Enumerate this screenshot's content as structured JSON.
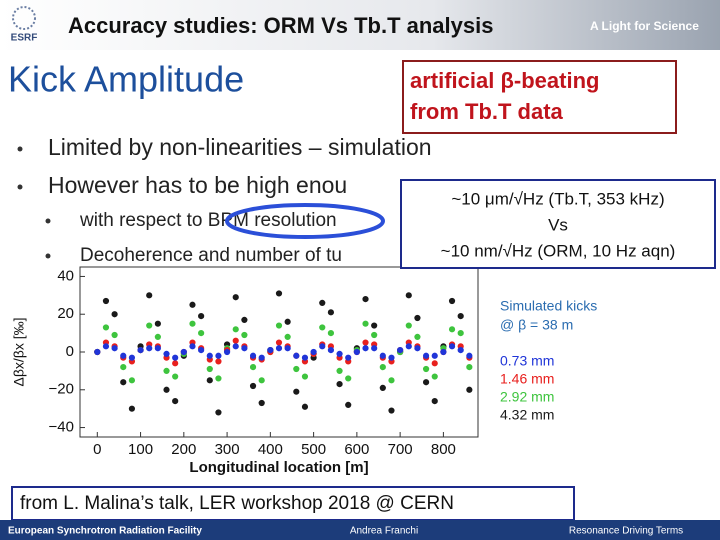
{
  "header": {
    "logo": "ESRF",
    "title": "Accuracy studies: ORM Vs Tb.T analysis",
    "tagline": "A Light for Science"
  },
  "slide_title": "Kick Amplitude",
  "bullets": [
    {
      "level": 1,
      "text": "Limited by non-linearities – simulation"
    },
    {
      "level": 1,
      "text": "However has to be high enou"
    },
    {
      "level": 2,
      "text": "with respect to BPM resolution"
    },
    {
      "level": 2,
      "text": "Decoherence and number of tu"
    }
  ],
  "callout": [
    "artificial β-beating",
    "from Tb.T data"
  ],
  "resolution_box": [
    "~10 μm/√Hz (Tb.T, 353 kHz)",
    "Vs",
    "~10 nm/√Hz (ORM, 10 Hz aqn)"
  ],
  "source_note": "from L. Malina’s talk, LER workshop 2018 @ CERN",
  "footer": {
    "org": "European Synchrotron Radiation Facility",
    "author": "Andrea Franchi",
    "topic": "Resonance Driving Terms"
  },
  "chart_data": {
    "type": "scatter",
    "xlabel": "Longitudinal location [m]",
    "ylabel": "Δβx/βx [‰]",
    "legend_title": [
      "Simulated kicks",
      "@ β = 38 m"
    ],
    "x": [
      0,
      20,
      40,
      60,
      80,
      100,
      120,
      140,
      160,
      180,
      200,
      220,
      240,
      260,
      280,
      300,
      320,
      340,
      360,
      380,
      400,
      420,
      440,
      460,
      480,
      500,
      520,
      540,
      560,
      580,
      600,
      620,
      640,
      660,
      680,
      700,
      720,
      740,
      760,
      780,
      800,
      820,
      840,
      860
    ],
    "series": [
      {
        "name": "4.32 mm",
        "color": "#1a1a1a",
        "values": [
          0,
          27,
          20,
          -16,
          -30,
          3,
          30,
          15,
          -20,
          -26,
          -2,
          25,
          19,
          -15,
          -32,
          4,
          29,
          17,
          -18,
          -27,
          1,
          31,
          16,
          -21,
          -29,
          -3,
          26,
          21,
          -17,
          -28,
          2,
          28,
          14,
          -19,
          -31,
          0,
          30,
          18,
          -16,
          -26,
          3,
          27,
          19,
          -20
        ]
      },
      {
        "name": "2.92 mm",
        "color": "#3ec43e",
        "values": [
          0,
          13,
          9,
          -8,
          -15,
          1,
          14,
          8,
          -10,
          -13,
          -1,
          15,
          10,
          -9,
          -14,
          2,
          12,
          9,
          -8,
          -15,
          0,
          14,
          8,
          -9,
          -13,
          -1,
          13,
          10,
          -10,
          -14,
          1,
          15,
          9,
          -8,
          -15,
          0,
          14,
          8,
          -9,
          -13,
          2,
          12,
          10,
          -8
        ]
      },
      {
        "name": "1.46 mm",
        "color": "#e8201e",
        "values": [
          0,
          5,
          3,
          -3,
          -5,
          1,
          4,
          3,
          -3,
          -6,
          0,
          5,
          2,
          -4,
          -5,
          1,
          6,
          3,
          -3,
          -4,
          0,
          5,
          3,
          -2,
          -5,
          -1,
          4,
          3,
          -3,
          -5,
          0,
          5,
          4,
          -3,
          -5,
          1,
          5,
          3,
          -3,
          -6,
          0,
          4,
          3,
          -3
        ]
      },
      {
        "name": "0.73 mm",
        "color": "#2035d8",
        "values": [
          0,
          3,
          2,
          -2,
          -3,
          1,
          2,
          2,
          -1,
          -3,
          0,
          3,
          1,
          -2,
          -2,
          0,
          3,
          2,
          -2,
          -3,
          1,
          2,
          2,
          -2,
          -3,
          0,
          3,
          1,
          -1,
          -3,
          0,
          2,
          2,
          -2,
          -3,
          1,
          3,
          2,
          -2,
          -2,
          0,
          3,
          1,
          -2
        ]
      }
    ],
    "xlim": [
      -40,
      880
    ],
    "xticks": [
      0,
      100,
      200,
      300,
      400,
      500,
      600,
      700,
      800
    ],
    "ylim": [
      -45,
      45
    ],
    "yticks": [
      {
        "value": -40,
        "label": "−40"
      },
      {
        "value": -20,
        "label": "−20"
      },
      0,
      20,
      40
    ]
  }
}
